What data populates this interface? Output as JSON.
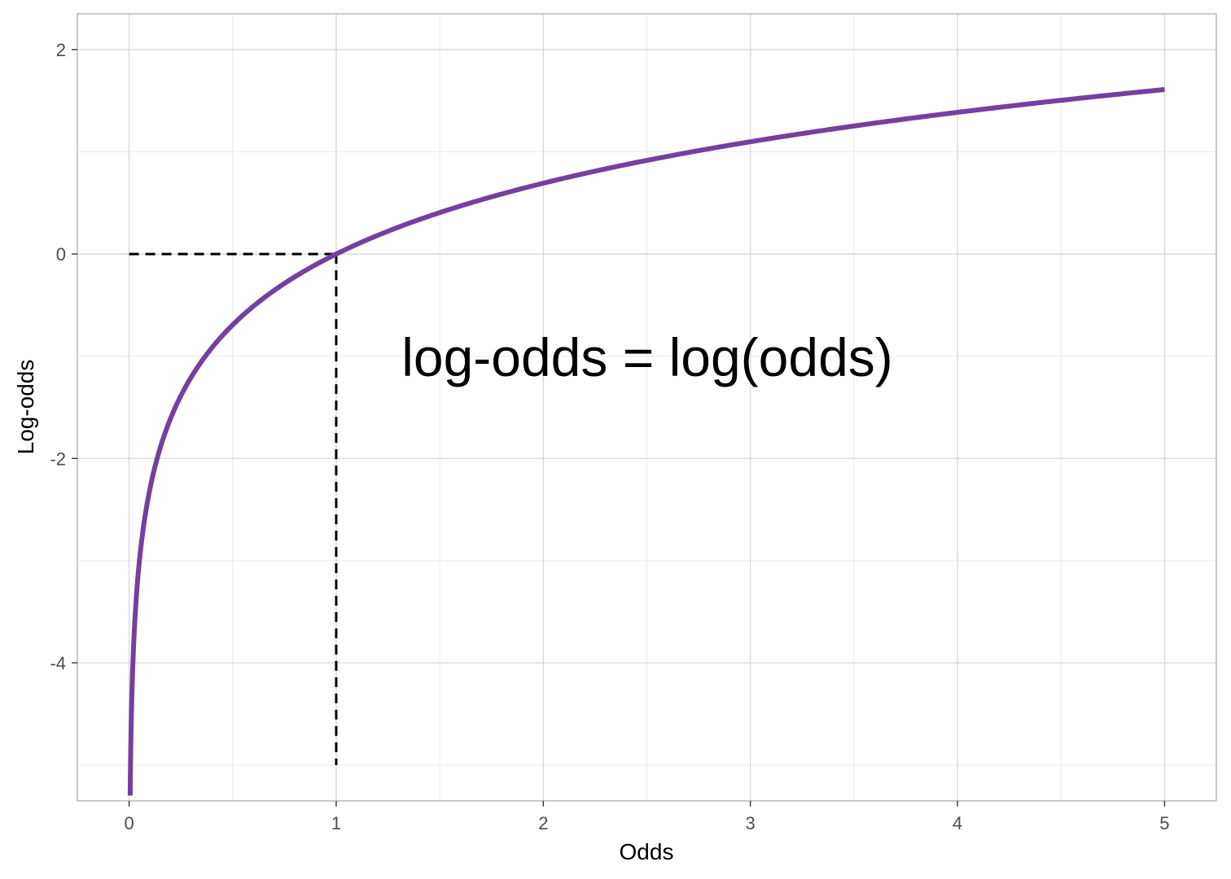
{
  "chart_data": {
    "type": "line",
    "xlabel": "Odds",
    "ylabel": "Log-odds",
    "xlim": [
      -0.25,
      5.25
    ],
    "ylim": [
      -5.35,
      2.35
    ],
    "x_ticks": [
      0,
      1,
      2,
      3,
      4,
      5
    ],
    "x_tick_labels": [
      "0",
      "1",
      "2",
      "3",
      "4",
      "5"
    ],
    "y_ticks": [
      -4,
      -2,
      0,
      2
    ],
    "y_tick_labels": [
      "-4",
      "-2",
      "0",
      "2"
    ],
    "x_minor_grid": [
      0.5,
      1.5,
      2.5,
      3.5,
      4.5
    ],
    "y_minor_grid": [
      -5,
      -3,
      -1,
      1
    ],
    "grid": true,
    "annotation": "log-odds = log(odds)",
    "series": [
      {
        "function": "log(x)",
        "x_min": 0.005,
        "x_max": 5,
        "color": "#7440a0"
      }
    ],
    "reference_lines": [
      {
        "from": [
          0,
          0
        ],
        "to": [
          1,
          0
        ],
        "style": "dashed",
        "color": "#000000"
      },
      {
        "from": [
          1,
          0
        ],
        "to": [
          1,
          -5
        ],
        "style": "dashed",
        "color": "#000000"
      }
    ],
    "colors": {
      "panel_border": "#b3b3b3",
      "grid_major": "#d9d9d9",
      "grid_minor": "#ebebeb",
      "tick_label": "#4d4d4d"
    }
  }
}
